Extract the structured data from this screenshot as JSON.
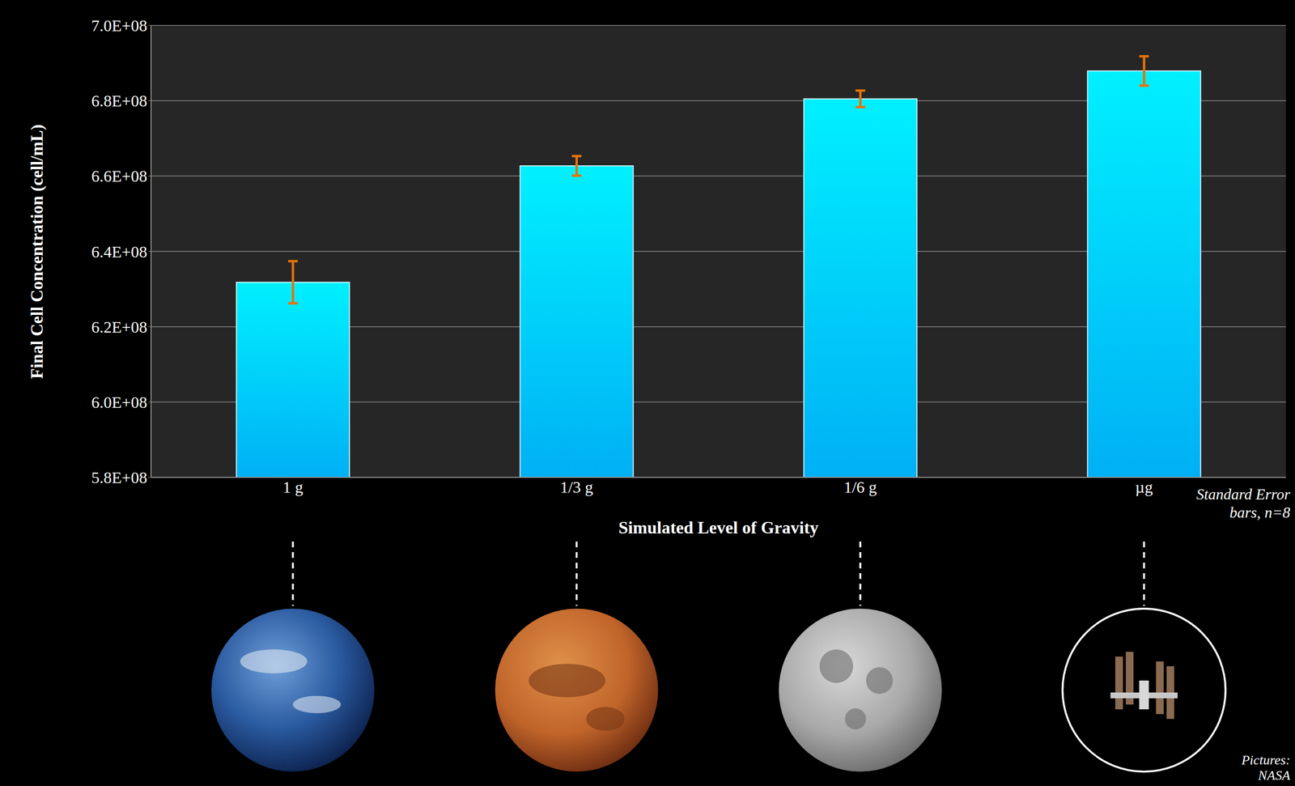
{
  "chart_data": {
    "type": "bar",
    "categories": [
      "1 g",
      "1/3 g",
      "1/6 g",
      "µg"
    ],
    "values": [
      631800000,
      662700000,
      680500000,
      687900000
    ],
    "errors": [
      5600000,
      2600000,
      2200000,
      3900000
    ],
    "color": "#00F0FF",
    "xlabel": "Simulated Level of Gravity",
    "ylabel": "Final Cell Concentration (cell/mL)",
    "ylim": [
      580000000,
      700000000
    ],
    "yticks": [
      {
        "value": 580000000,
        "label": "5.8E+08"
      },
      {
        "value": 600000000,
        "label": "6.0E+08"
      },
      {
        "value": 620000000,
        "label": "6.2E+08"
      },
      {
        "value": 640000000,
        "label": "6.4E+08"
      },
      {
        "value": 660000000,
        "label": "6.6E+08"
      },
      {
        "value": 680000000,
        "label": "6.8E+08"
      },
      {
        "value": 700000000,
        "label": "7.0E+08"
      }
    ],
    "grid": true,
    "annotations": [
      "Standard Error bars, n=8",
      "Pictures: NASA"
    ]
  }
}
